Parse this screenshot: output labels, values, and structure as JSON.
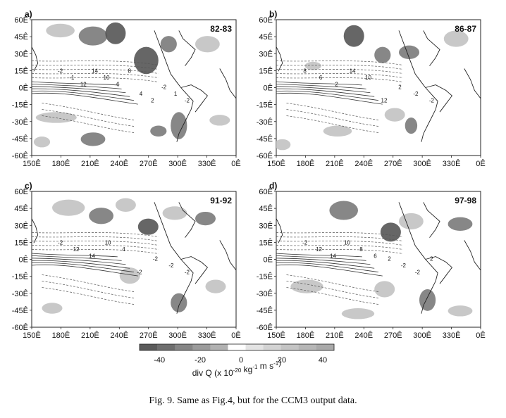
{
  "chart_data": [
    {
      "type": "heatmap",
      "panel_label": "a)",
      "period": "82-83",
      "x_ticks": [
        "150Ê",
        "180Ê",
        "210Ê",
        "240Ê",
        "270Ê",
        "300Ê",
        "330Ê",
        "0Ê"
      ],
      "y_ticks": [
        "60Ê",
        "45Ê",
        "30Ê",
        "15Ê",
        "0Ê",
        "-15Ê",
        "-30Ê",
        "-45Ê",
        "-60Ê"
      ],
      "contour_labels": [
        "-2",
        "-1",
        "12",
        "14",
        "10",
        "6",
        "8",
        "4",
        "2",
        "-2",
        "1",
        "-2"
      ]
    },
    {
      "type": "heatmap",
      "panel_label": "b)",
      "period": "86-87",
      "x_ticks": [
        "150Ê",
        "180Ê",
        "210Ê",
        "240Ê",
        "270Ê",
        "300Ê",
        "330Ê",
        "0Ê"
      ],
      "y_ticks": [
        "60Ê",
        "45Ê",
        "30Ê",
        "15Ê",
        "0Ê",
        "-15Ê",
        "-30Ê",
        "-45Ê",
        "-60Ê"
      ],
      "contour_labels": [
        "8",
        "6",
        "2",
        "14",
        "10",
        "12",
        "2",
        "-2",
        "-2"
      ]
    },
    {
      "type": "heatmap",
      "panel_label": "c)",
      "period": "91-92",
      "x_ticks": [
        "150Ê",
        "180Ê",
        "210Ê",
        "240Ê",
        "270Ê",
        "300Ê",
        "330Ê",
        "0Ê"
      ],
      "y_ticks": [
        "60Ê",
        "45Ê",
        "30Ê",
        "15Ê",
        "0Ê",
        "-15Ê",
        "-30Ê",
        "-45Ê",
        "-60Ê"
      ],
      "contour_labels": [
        "-2",
        "12",
        "14",
        "10",
        "4",
        "-2",
        "-2",
        "-2",
        "-2"
      ]
    },
    {
      "type": "heatmap",
      "panel_label": "d)",
      "period": "97-98",
      "x_ticks": [
        "150Ê",
        "180Ê",
        "210Ê",
        "240Ê",
        "270Ê",
        "300Ê",
        "330Ê",
        "0Ê"
      ],
      "y_ticks": [
        "60Ê",
        "45Ê",
        "30Ê",
        "15Ê",
        "0Ê",
        "-15Ê",
        "-30Ê",
        "-45Ê",
        "-60Ê"
      ],
      "contour_labels": [
        "-2",
        "12",
        "14",
        "10",
        "8",
        "6",
        "2",
        "-2",
        "-2",
        "2"
      ]
    }
  ],
  "colorbar": {
    "ticks": [
      "-40",
      "-20",
      "0",
      "20",
      "40"
    ],
    "label_main": "div Q  (x 10",
    "label_exp1": "-20",
    "label_mid": " kg",
    "label_exp2": "-1",
    "label_end": " m s",
    "label_exp3": "-1",
    "label_close": ")",
    "colors": [
      "#5a5a5a",
      "#6e6e6e",
      "#858585",
      "#9b9b9b",
      "#b1b1b1",
      "#ffffff",
      "#e4e4e4",
      "#d3d3d3",
      "#c4c4c4",
      "#b6b6b6",
      "#a9a9a9"
    ]
  },
  "caption": "Fig. 9. Same as Fig.4, but for the CCM3 output data.",
  "colors": {
    "neg_dark": "#555555",
    "neg_mid": "#7a7a7a",
    "pos_light": "#c2c2c2",
    "contour": "#333333"
  }
}
